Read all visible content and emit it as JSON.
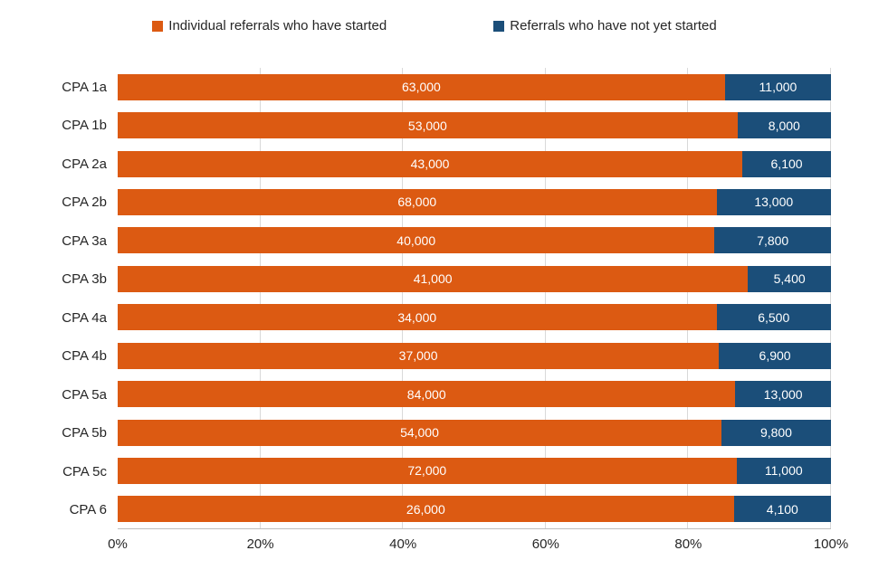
{
  "chart_data": {
    "type": "bar",
    "subtype": "stacked-100-horizontal",
    "title": "",
    "xlabel": "",
    "ylabel": "",
    "xlim": [
      0,
      100
    ],
    "grid": true,
    "legend_position": "top",
    "categories": [
      "CPA 1a",
      "CPA 1b",
      "CPA 2a",
      "CPA 2b",
      "CPA 3a",
      "CPA 3b",
      "CPA 4a",
      "CPA 4b",
      "CPA 5a",
      "CPA 5b",
      "CPA 5c",
      "CPA 6"
    ],
    "series": [
      {
        "name": "Individual referrals who have started",
        "color": "#dc5a12",
        "values": [
          63000,
          53000,
          43000,
          68000,
          40000,
          41000,
          34000,
          37000,
          84000,
          54000,
          72000,
          26000
        ],
        "labels": [
          "63,000",
          "53,000",
          "43,000",
          "68,000",
          "40,000",
          "41,000",
          "34,000",
          "37,000",
          "84,000",
          "54,000",
          "72,000",
          "26,000"
        ]
      },
      {
        "name": "Referrals who have not yet started",
        "color": "#1b4e79",
        "values": [
          11000,
          8000,
          6100,
          13000,
          7800,
          5400,
          6500,
          6900,
          13000,
          9800,
          11000,
          4100
        ],
        "labels": [
          "11,000",
          "8,000",
          "6,100",
          "13,000",
          "7,800",
          "5,400",
          "6,500",
          "6,900",
          "13,000",
          "9,800",
          "11,000",
          "4,100"
        ]
      }
    ],
    "x_ticks": [
      {
        "label": "0%",
        "value": 0
      },
      {
        "label": "20%",
        "value": 20
      },
      {
        "label": "40%",
        "value": 40
      },
      {
        "label": "60%",
        "value": 60
      },
      {
        "label": "80%",
        "value": 80
      },
      {
        "label": "100%",
        "value": 100
      }
    ],
    "gridline_values": [
      20,
      40,
      60,
      80,
      100
    ],
    "colors": {
      "data_label_text": "#ffffff",
      "axis_text": "#262626",
      "gridline": "#d9d9d9",
      "axis_line": "#bfbfbf",
      "background": "#ffffff"
    }
  }
}
